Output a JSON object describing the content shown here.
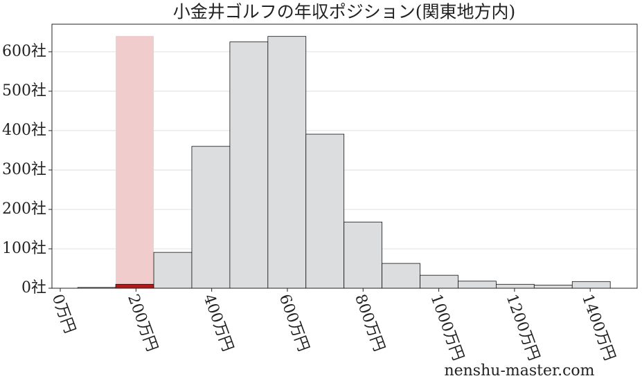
{
  "chart_data": {
    "type": "histogram",
    "title": "小金井ゴルフの年収ポジション(関東地方内)",
    "bins": [
      46,
      146.5,
      247,
      347.5,
      448,
      548.5,
      649,
      749.5,
      850,
      950.5,
      1051,
      1151.5,
      1252,
      1352.5,
      1453
    ],
    "values": [
      2,
      10,
      91,
      360,
      625,
      639,
      391,
      168,
      63,
      33,
      18,
      10,
      8,
      17
    ],
    "color": "#dcdddf",
    "highlight": {
      "x": [
        146.5,
        247
      ],
      "y": 640,
      "color": "#f0cccc",
      "bar_color": "#b21a1a"
    },
    "xlim": [
      -22,
      1524
    ],
    "xticks": [
      {
        "value": 0,
        "label": "0万円"
      },
      {
        "value": 200,
        "label": "200万円"
      },
      {
        "value": 400,
        "label": "400万円"
      },
      {
        "value": 600,
        "label": "600万円"
      },
      {
        "value": 800,
        "label": "800万円"
      },
      {
        "value": 1000,
        "label": "1000万円"
      },
      {
        "value": 1200,
        "label": "1200万円"
      },
      {
        "value": 1400,
        "label": "1400万円"
      }
    ],
    "ylim": [
      0,
      670
    ],
    "yticks": [
      {
        "value": 0,
        "label": "0社"
      },
      {
        "value": 100,
        "label": "100社"
      },
      {
        "value": 200,
        "label": "200社"
      },
      {
        "value": 300,
        "label": "300社"
      },
      {
        "value": 400,
        "label": "400社"
      },
      {
        "value": 500,
        "label": "500社"
      },
      {
        "value": 600,
        "label": "600社"
      }
    ],
    "grid": true,
    "watermark": "nenshu-master.com"
  }
}
